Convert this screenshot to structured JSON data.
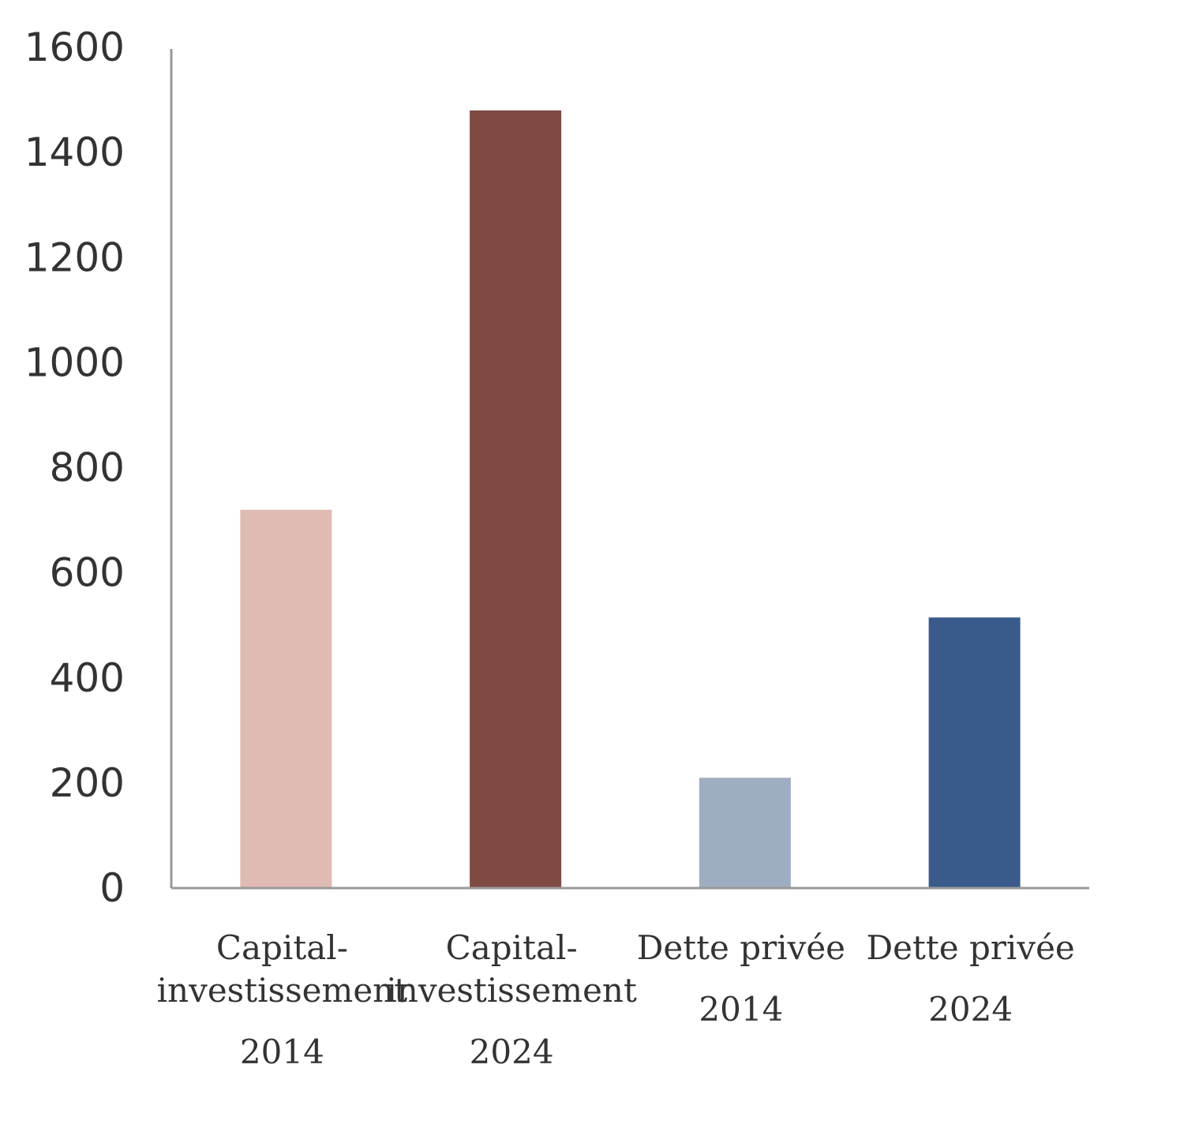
{
  "chart_data": {
    "type": "bar",
    "title": "",
    "xlabel": "",
    "ylabel": "",
    "ylim": [
      0,
      1600
    ],
    "yticks": [
      0,
      200,
      400,
      600,
      800,
      1000,
      1200,
      1400,
      1600
    ],
    "grid": false,
    "legend": "none",
    "categories": [
      [
        "Capital-",
        "investissement",
        "2014"
      ],
      [
        "Capital-",
        "investissement",
        "2024"
      ],
      [
        "Dette privée",
        "2014"
      ],
      [
        "Dette privée",
        "2024"
      ]
    ],
    "values": [
      720,
      1480,
      210,
      515
    ],
    "colors": [
      "#e0bbb3",
      "#7e4a42",
      "#9fadc2",
      "#3a5a8c"
    ]
  }
}
